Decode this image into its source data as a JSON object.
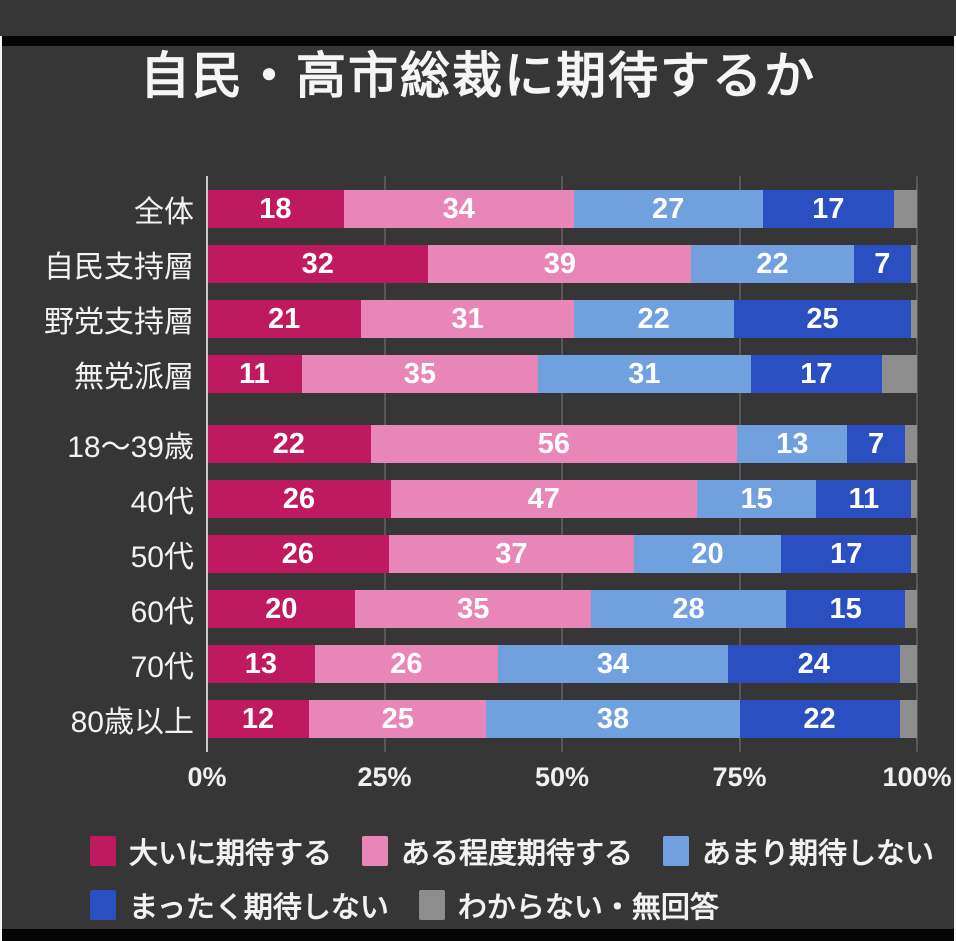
{
  "page": {
    "title": "自民・高市総裁に期待するか"
  },
  "colors": {
    "background": "#363636",
    "frame_strip": "#050505",
    "gridline": "#575757",
    "axis_line": "#c9c9c9",
    "text": "#f2f2f2"
  },
  "chart_data": {
    "type": "bar",
    "variant": "horizontal-stacked-percent",
    "title": "自民・高市総裁に期待するか",
    "categories": [
      "全体",
      "自民支持層",
      "野党支持層",
      "無党派層",
      "18〜39歳",
      "40代",
      "50代",
      "60代",
      "70代",
      "80歳以上"
    ],
    "group_gap_before": "18〜39歳",
    "series": [
      {
        "name": "大いに期待する",
        "color": "#bf1a60",
        "show_labels": true,
        "values": [
          18,
          32,
          21,
          11,
          22,
          26,
          26,
          20,
          13,
          12
        ]
      },
      {
        "name": "ある程度期待する",
        "color": "#e886b8",
        "show_labels": true,
        "values": [
          34,
          39,
          31,
          35,
          56,
          47,
          37,
          35,
          26,
          25
        ]
      },
      {
        "name": "あまり期待しない",
        "color": "#70a0de",
        "show_labels": true,
        "values": [
          27,
          22,
          22,
          31,
          13,
          15,
          20,
          28,
          34,
          38
        ]
      },
      {
        "name": "まったく期待しない",
        "color": "#2b4fc1",
        "show_labels": true,
        "values": [
          17,
          7,
          25,
          17,
          7,
          11,
          17,
          15,
          24,
          22
        ]
      },
      {
        "name": "わからない・無回答",
        "color": "#8d8d8d",
        "show_labels": false,
        "values": [
          4,
          1,
          1,
          6,
          2,
          1,
          1,
          2,
          3,
          3
        ]
      }
    ],
    "xlim": [
      0,
      100
    ],
    "x_ticks": [
      {
        "pos": 0,
        "label": "0%"
      },
      {
        "pos": 25,
        "label": "25%"
      },
      {
        "pos": 50,
        "label": "50%"
      },
      {
        "pos": 75,
        "label": "75%"
      },
      {
        "pos": 100,
        "label": "100%"
      }
    ],
    "legend_rows": [
      [
        0,
        1,
        2
      ],
      [
        3,
        4
      ]
    ],
    "legend_position": "bottom"
  }
}
